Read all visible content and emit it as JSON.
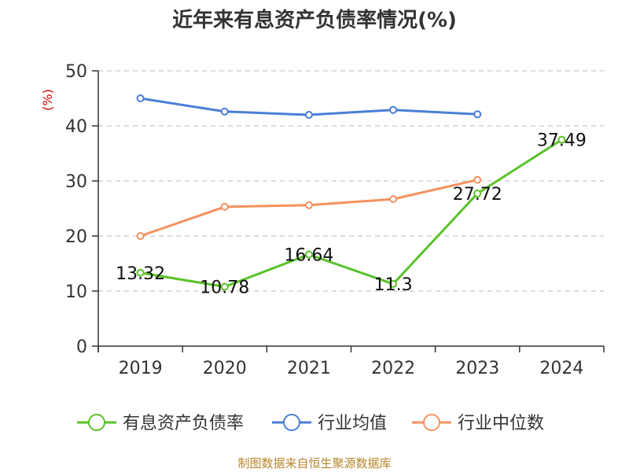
{
  "chart_data": {
    "type": "line",
    "title": "近年来有息资产负债率情况(%)",
    "ylabel": "(%)",
    "categories": [
      "2019",
      "2020",
      "2021",
      "2022",
      "2023",
      "2024"
    ],
    "ylim": [
      0,
      50
    ],
    "yticks": [
      0,
      10,
      20,
      30,
      40,
      50
    ],
    "grid": true,
    "legend_position": "bottom",
    "series": [
      {
        "name": "有息资产负债率",
        "color": "#5ac228",
        "values": [
          13.32,
          10.78,
          16.64,
          11.3,
          27.72,
          37.49
        ],
        "labels": [
          "13.32",
          "10.78",
          "16.64",
          "11.3",
          "27.72",
          "37.49"
        ]
      },
      {
        "name": "行业均值",
        "color": "#4a7fd6",
        "values": [
          45.0,
          42.6,
          42.0,
          42.9,
          42.1,
          null
        ]
      },
      {
        "name": "行业中位数",
        "color": "#f4915e",
        "values": [
          20.0,
          25.3,
          25.6,
          26.7,
          30.2,
          null
        ]
      }
    ]
  },
  "source": "制图数据来自恒生聚源数据库"
}
